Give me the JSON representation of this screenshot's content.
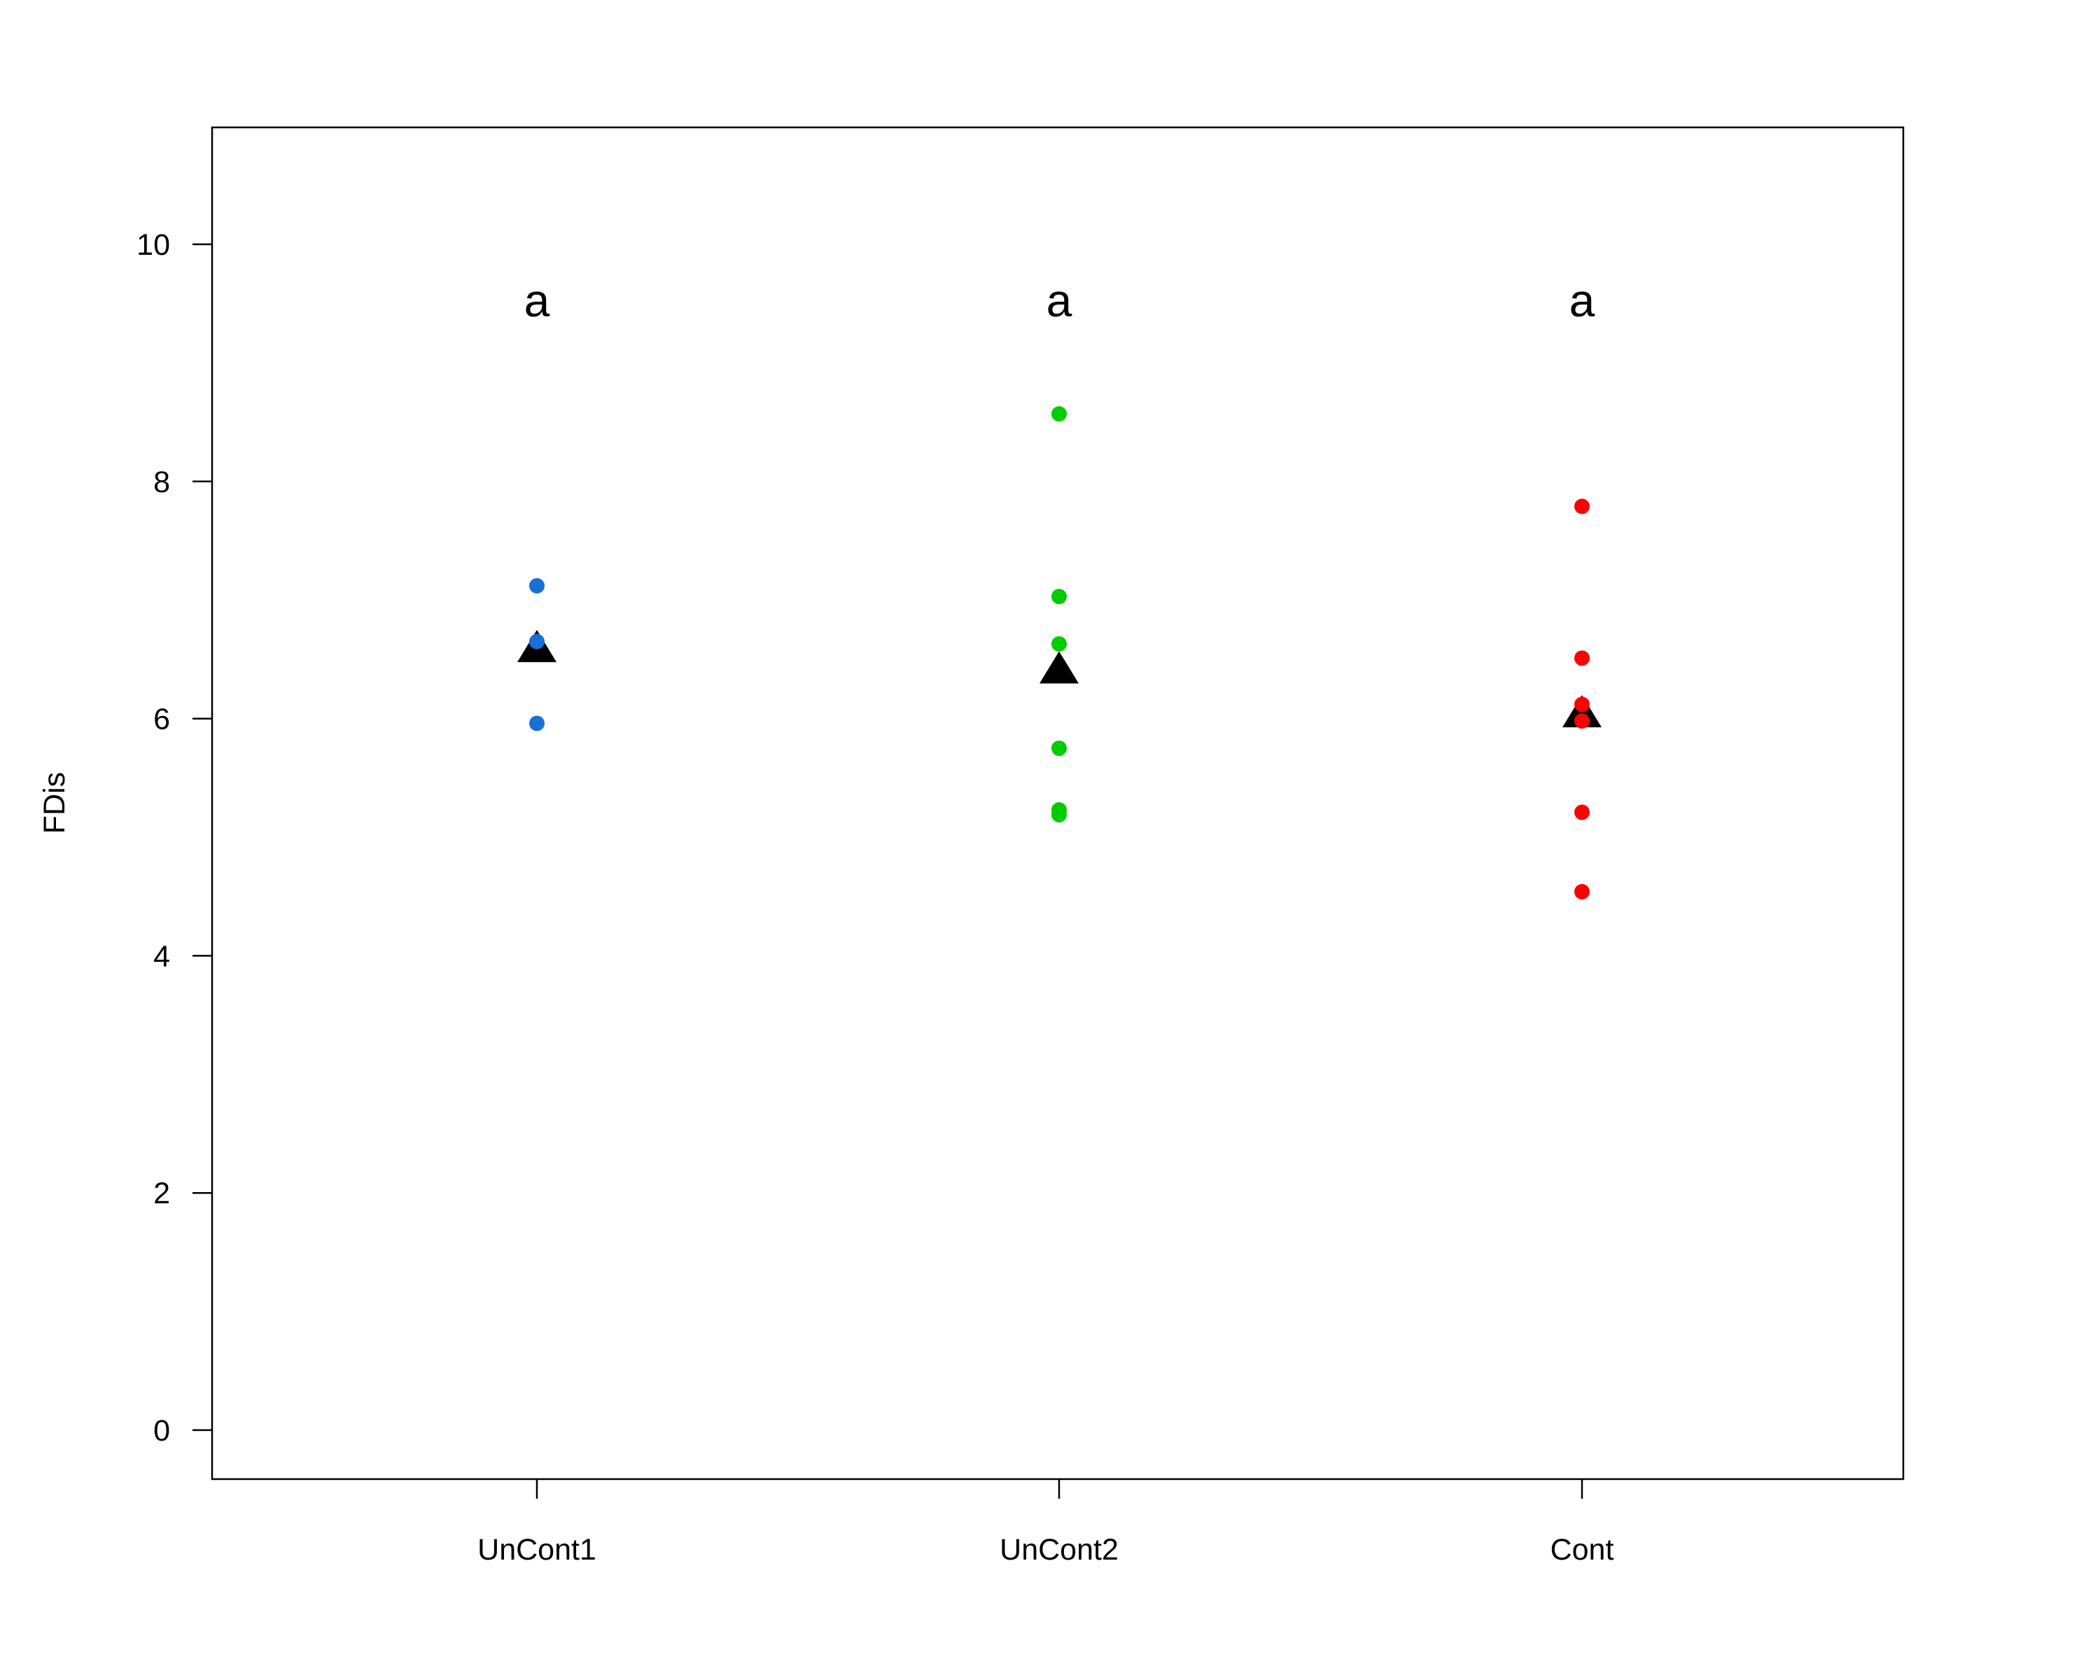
{
  "chart_data": {
    "type": "scatter",
    "title": "",
    "xlabel": "",
    "ylabel": "FDis",
    "ylim": [
      -0.8,
      11
    ],
    "yticks": [
      0,
      2,
      4,
      6,
      8,
      10
    ],
    "ytick_labels": [
      "0",
      "2",
      "4",
      "6",
      "8",
      "10"
    ],
    "categories": [
      "UnCont1",
      "UnCont2",
      "Cont"
    ],
    "grid": false,
    "series": [
      {
        "name": "UnCont1",
        "color": "#1a6fd4",
        "values": [
          7.12,
          6.65,
          5.96
        ],
        "mean": 6.58,
        "letter": "a"
      },
      {
        "name": "UnCont2",
        "color": "#00cc00",
        "values": [
          8.57,
          7.03,
          6.63,
          5.75,
          5.23,
          5.19
        ],
        "mean": 6.4,
        "letter": "a"
      },
      {
        "name": "Cont",
        "color": "#ff0000",
        "values": [
          7.79,
          6.51,
          6.12,
          5.98,
          5.21,
          4.54
        ],
        "mean": 6.03,
        "letter": "a"
      }
    ],
    "mean_marker": {
      "shape": "triangle",
      "color": "#000000"
    }
  }
}
